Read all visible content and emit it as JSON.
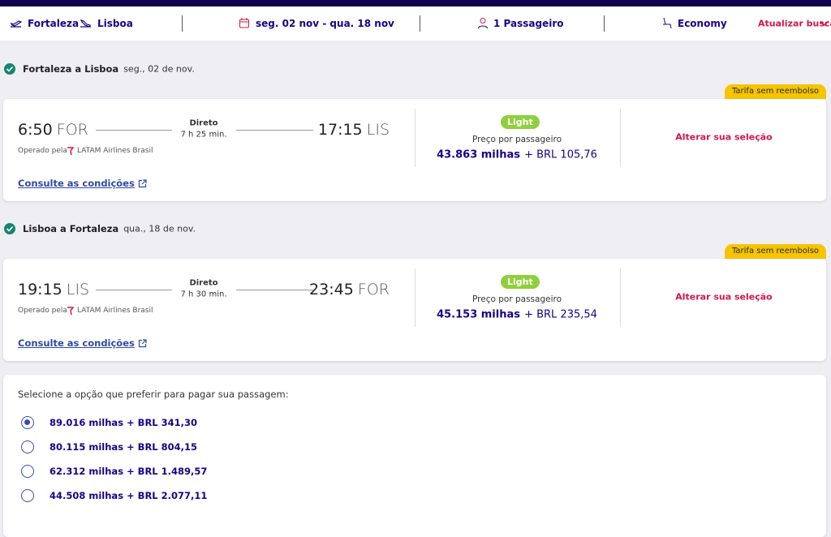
{
  "header": {
    "origin": "Fortaleza",
    "destination": "Lisboa",
    "dates": "seg. 02 nov - qua. 18 nov",
    "passengers": "1 Passageiro",
    "cabin": "Economy",
    "update": "Atualizar busca"
  },
  "flights": [
    {
      "title": "Fortaleza a Lisboa",
      "date": "seg., 02 de nov.",
      "badge": "Tarifa sem reembolso",
      "departure_time": "6:50",
      "departure_code": "FOR",
      "stop_type": "Direto",
      "duration": "7 h 25 min.",
      "arrival_time": "17:15",
      "arrival_code": "LIS",
      "operated_by": "Operado pela",
      "airline": "LATAM Airlines Brasil",
      "conditions_link": "Consulte as condições",
      "fare_brand": "Light",
      "price_label": "Preço por passageiro",
      "miles": "43.863 milhas",
      "price_extra": "+ BRL 105,76",
      "change_link": "Alterar sua seleção"
    },
    {
      "title": "Lisboa a Fortaleza",
      "date": "qua., 18 de nov.",
      "badge": "Tarifa sem reembolso",
      "departure_time": "19:15",
      "departure_code": "LIS",
      "stop_type": "Direto",
      "duration": "7 h 30 min.",
      "arrival_time": "23:45",
      "arrival_code": "FOR",
      "operated_by": "Operado pela",
      "airline": "LATAM Airlines Brasil",
      "conditions_link": "Consulte as condições",
      "fare_brand": "Light",
      "price_label": "Preço por passageiro",
      "miles": "45.153 milhas",
      "price_extra": "+ BRL 235,54",
      "change_link": "Alterar sua seleção"
    }
  ],
  "payment": {
    "prompt": "Selecione a opção que preferir para pagar sua passagem:",
    "options": [
      "89.016 milhas + BRL 341,30",
      "80.115 milhas + BRL 804,15",
      "62.312 milhas + BRL 1.489,57",
      "44.508 milhas + BRL 2.077,11"
    ],
    "selected": 0
  }
}
